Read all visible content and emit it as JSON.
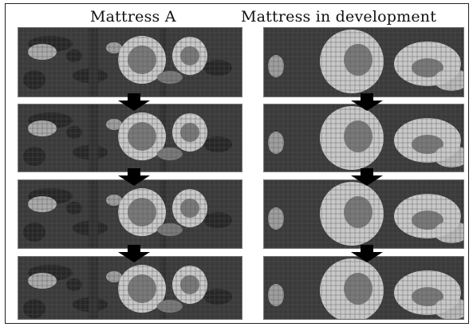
{
  "columns": [
    {
      "id": "a",
      "title": "Mattress A",
      "steps": 4
    },
    {
      "id": "b",
      "title": "Mattress in development",
      "steps": 4
    }
  ],
  "colors": {
    "background_map": "#3a3a3a",
    "low_pressure": "#262626",
    "mid_pressure": "#7a7a7a",
    "high_pressure": "#c9c9c9",
    "grid_line": "#555555",
    "arrow": "#000000"
  },
  "icons": {
    "step_arrow": "down-arrow-icon"
  }
}
